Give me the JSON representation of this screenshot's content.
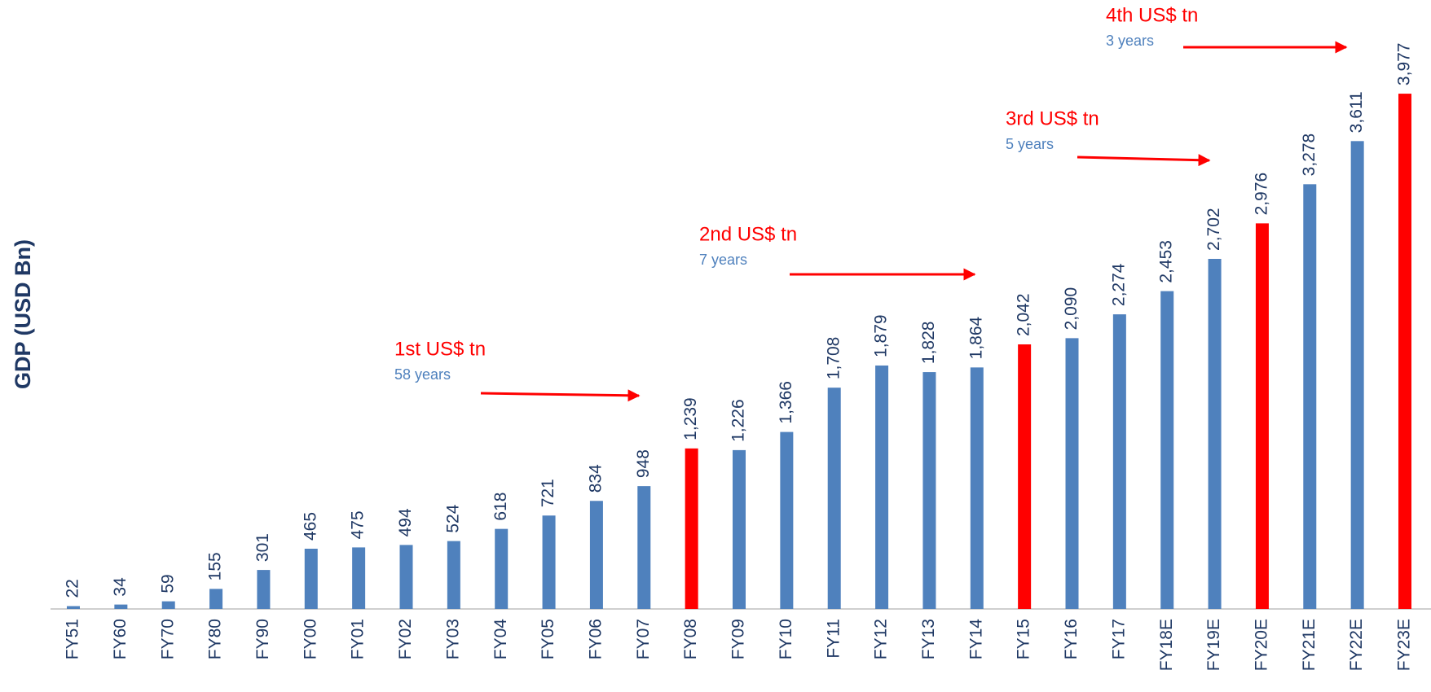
{
  "chart_data": {
    "type": "bar",
    "y_label": "GDP (USD Bn)",
    "categories": [
      "FY51",
      "FY60",
      "FY70",
      "FY80",
      "FY90",
      "FY00",
      "FY01",
      "FY02",
      "FY03",
      "FY04",
      "FY05",
      "FY06",
      "FY07",
      "FY08",
      "FY09",
      "FY10",
      "FY11",
      "FY12",
      "FY13",
      "FY14",
      "FY15",
      "FY16",
      "FY17",
      "FY18E",
      "FY19E",
      "FY20E",
      "FY21E",
      "FY22E",
      "FY23E"
    ],
    "values": [
      22,
      34,
      59,
      155,
      301,
      465,
      475,
      494,
      524,
      618,
      721,
      834,
      948,
      1239,
      1226,
      1366,
      1708,
      1879,
      1828,
      1864,
      2042,
      2090,
      2274,
      2453,
      2702,
      2976,
      3278,
      3611,
      3977
    ],
    "value_labels": [
      "22",
      "34",
      "59",
      "155",
      "301",
      "465",
      "475",
      "494",
      "524",
      "618",
      "721",
      "834",
      "948",
      "1,239",
      "1,226",
      "1,366",
      "1,708",
      "1,879",
      "1,828",
      "1,864",
      "2,042",
      "2,090",
      "2,274",
      "2,453",
      "2,702",
      "2,976",
      "3,278",
      "3,611",
      "3,977"
    ],
    "colors": [
      "#4f81bd",
      "#4f81bd",
      "#4f81bd",
      "#4f81bd",
      "#4f81bd",
      "#4f81bd",
      "#4f81bd",
      "#4f81bd",
      "#4f81bd",
      "#4f81bd",
      "#4f81bd",
      "#4f81bd",
      "#4f81bd",
      "#ff0000",
      "#4f81bd",
      "#4f81bd",
      "#4f81bd",
      "#4f81bd",
      "#4f81bd",
      "#4f81bd",
      "#ff0000",
      "#4f81bd",
      "#4f81bd",
      "#4f81bd",
      "#4f81bd",
      "#ff0000",
      "#4f81bd",
      "#4f81bd",
      "#ff0000"
    ],
    "ylim": [
      0,
      4700
    ],
    "annotations": [
      {
        "title": "1st US$ tn",
        "subtitle": "58 years"
      },
      {
        "title": "2nd US$ tn",
        "subtitle": "7 years"
      },
      {
        "title": "3rd US$ tn",
        "subtitle": "5 years"
      },
      {
        "title": "4th US$ tn",
        "subtitle": "3 years"
      }
    ]
  }
}
